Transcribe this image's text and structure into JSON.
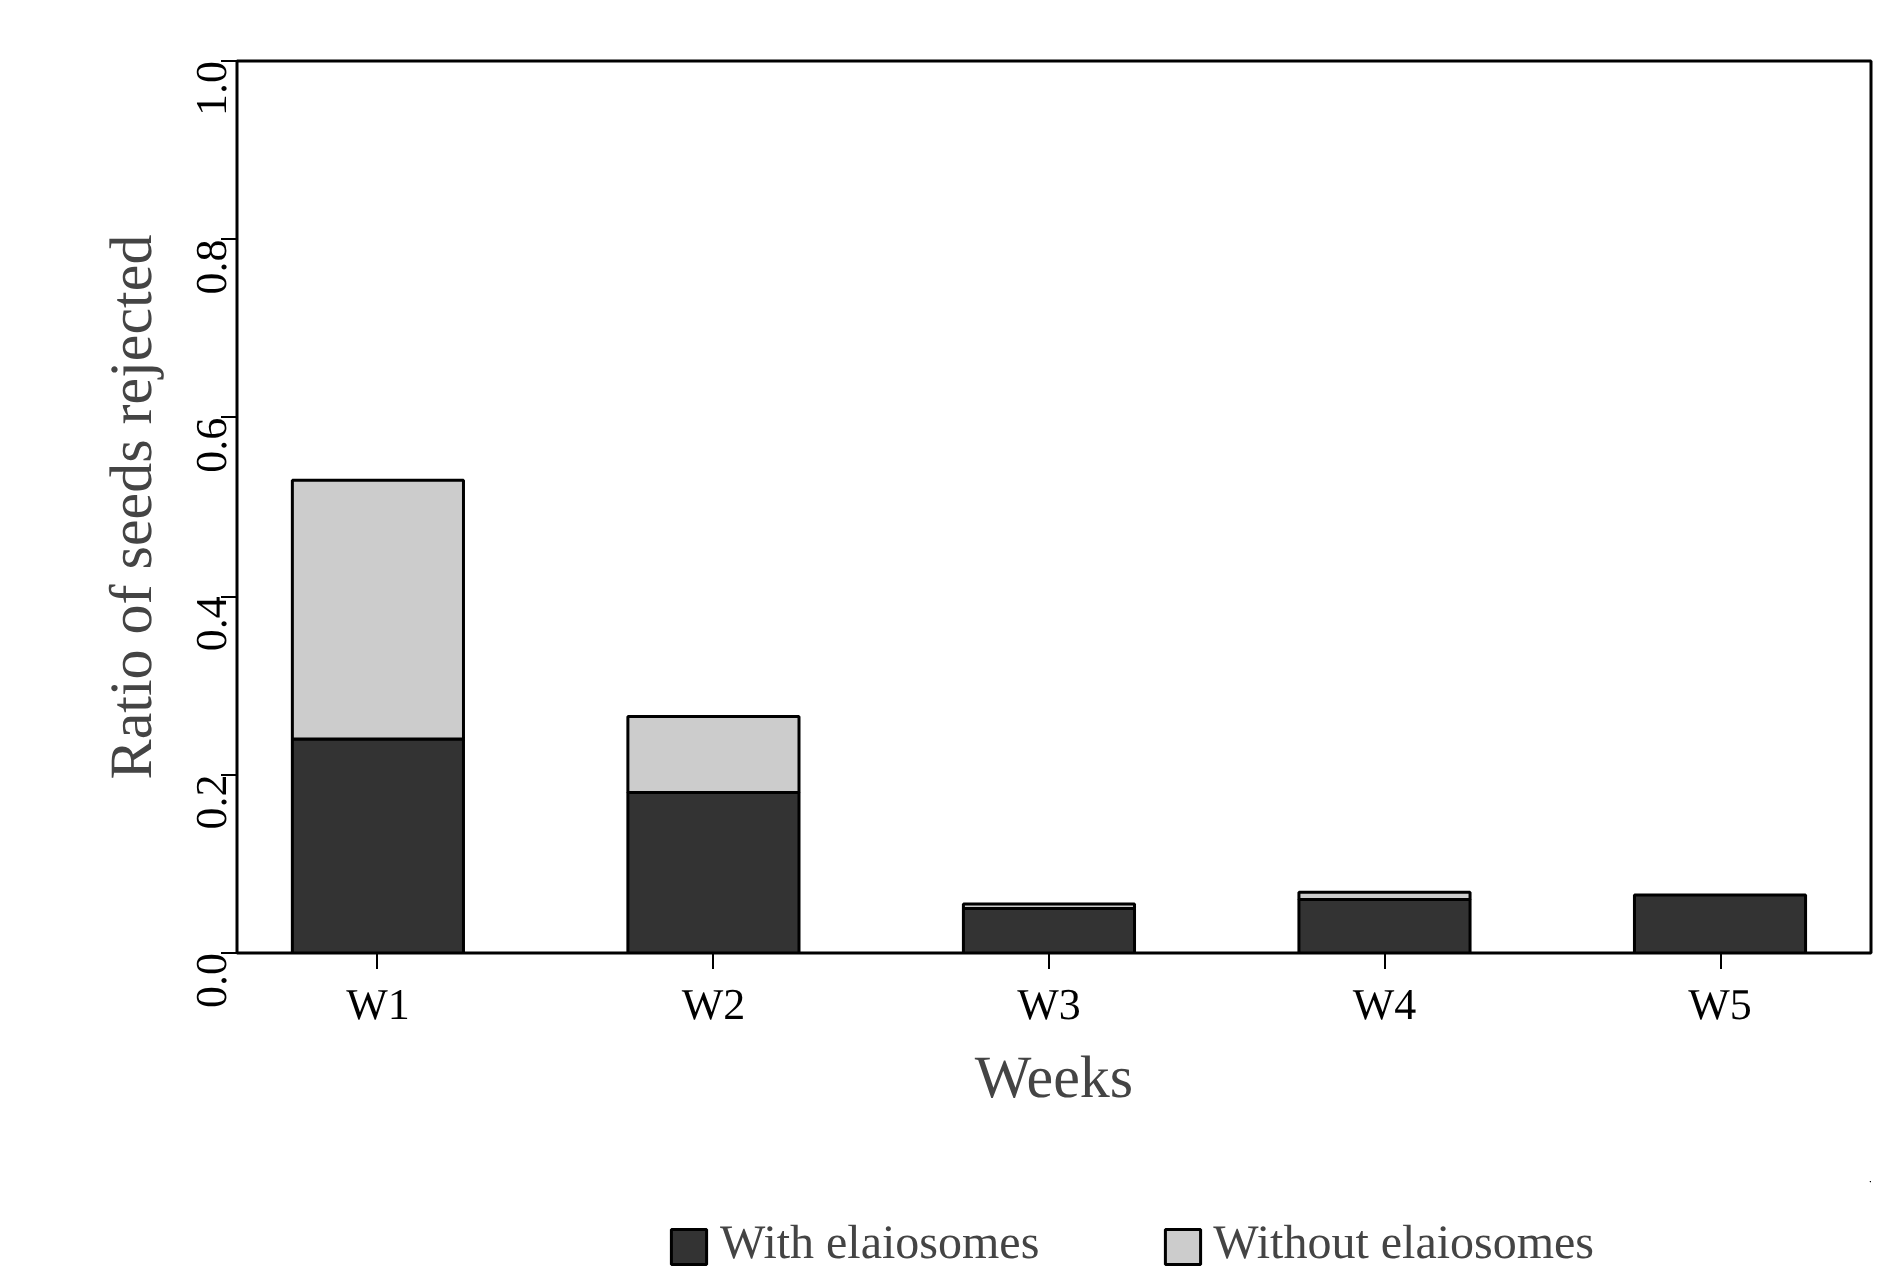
{
  "chart_data": {
    "type": "bar",
    "stacked": true,
    "xlabel": "Weeks",
    "ylabel": "Ratio of seeds rejected",
    "categories": [
      "W1",
      "W2",
      "W3",
      "W4",
      "W5"
    ],
    "series": [
      {
        "name": "With elaiosomes",
        "color": "#333333",
        "values": [
          0.24,
          0.18,
          0.05,
          0.06,
          0.065
        ]
      },
      {
        "name": "Without elaiosomes",
        "color": "#cccccc",
        "values": [
          0.29,
          0.085,
          0.005,
          0.008,
          null
        ]
      }
    ],
    "ylim": [
      0,
      1
    ],
    "yticks": [
      {
        "value": 0,
        "label": "0.0"
      },
      0.2,
      0.4,
      0.6,
      0.8,
      {
        "value": 1,
        "label": "1.0"
      }
    ],
    "grid": false,
    "legend": "bottom"
  }
}
